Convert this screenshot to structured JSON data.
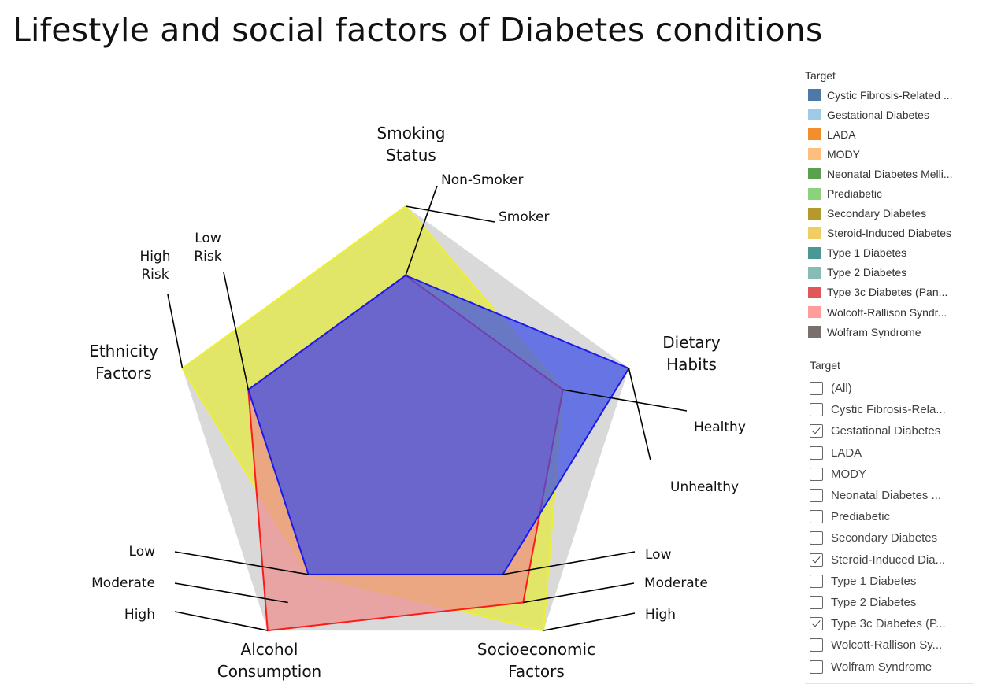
{
  "title": "Lifestyle and social factors of Diabetes conditions",
  "chart_data": {
    "type": "radar",
    "axes": [
      {
        "title_lines": [
          "Smoking",
          "Status"
        ],
        "levels": [
          "Non-Smoker",
          "Smoker"
        ]
      },
      {
        "title_lines": [
          "Dietary",
          "Habits"
        ],
        "levels": [
          "Healthy",
          "Unhealthy"
        ]
      },
      {
        "title_lines": [
          "Socioeconomic",
          "Factors"
        ],
        "levels": [
          "Low",
          "Moderate",
          "High"
        ]
      },
      {
        "title_lines": [
          "Alcohol",
          "Consumption"
        ],
        "levels": [
          "Low",
          "Moderate",
          "High"
        ]
      },
      {
        "title_lines": [
          "Ethnicity",
          "Factors"
        ],
        "levels": [
          "Low Risk",
          "High Risk"
        ]
      }
    ],
    "grid": true,
    "legend_position": "right",
    "series": [
      {
        "name": "Steroid-Induced Diabetes",
        "color": "#e6ee22",
        "stroke": "#ecf030",
        "opacity": 0.62,
        "values": [
          "Smoker",
          "Healthy",
          "High",
          "Low",
          "High Risk"
        ]
      },
      {
        "name": "Type 3c Diabetes (Pan...",
        "color": "#ee8b8b",
        "stroke": "#ff1a1a",
        "opacity": 0.7,
        "values": [
          "Non-Smoker",
          "Healthy",
          "Moderate",
          "High",
          "Low Risk"
        ]
      },
      {
        "name": "Gestational Diabetes",
        "color": "#3a4ee8",
        "stroke": "#1a1aee",
        "opacity": 0.72,
        "values": [
          "Non-Smoker",
          "Unhealthy",
          "Low",
          "Low",
          "Low Risk"
        ]
      }
    ]
  },
  "legend": {
    "title": "Target",
    "items": [
      {
        "label": "Cystic Fibrosis-Related ...",
        "color": "#4e79a7"
      },
      {
        "label": "Gestational Diabetes",
        "color": "#a0cbe8"
      },
      {
        "label": "LADA",
        "color": "#f28e2b"
      },
      {
        "label": "MODY",
        "color": "#ffbe7d"
      },
      {
        "label": "Neonatal Diabetes Melli...",
        "color": "#59a14f"
      },
      {
        "label": "Prediabetic",
        "color": "#8cd17d"
      },
      {
        "label": "Secondary Diabetes",
        "color": "#b6992d"
      },
      {
        "label": "Steroid-Induced Diabetes",
        "color": "#f1ce63"
      },
      {
        "label": "Type 1 Diabetes",
        "color": "#499894"
      },
      {
        "label": "Type 2 Diabetes",
        "color": "#86bcb6"
      },
      {
        "label": "Type 3c Diabetes (Pan...",
        "color": "#e15759"
      },
      {
        "label": "Wolcott-Rallison Syndr...",
        "color": "#ff9d9a"
      },
      {
        "label": "Wolfram Syndrome",
        "color": "#79706e"
      }
    ]
  },
  "filter": {
    "title": "Target",
    "items": [
      {
        "label": "(All)",
        "checked": false
      },
      {
        "label": "Cystic Fibrosis-Rela...",
        "checked": false
      },
      {
        "label": "Gestational Diabetes",
        "checked": true
      },
      {
        "label": "LADA",
        "checked": false
      },
      {
        "label": "MODY",
        "checked": false
      },
      {
        "label": "Neonatal Diabetes ...",
        "checked": false
      },
      {
        "label": "Prediabetic",
        "checked": false
      },
      {
        "label": "Secondary Diabetes",
        "checked": false
      },
      {
        "label": "Steroid-Induced Dia...",
        "checked": true
      },
      {
        "label": "Type 1 Diabetes",
        "checked": false
      },
      {
        "label": "Type 2 Diabetes",
        "checked": false
      },
      {
        "label": "Type 3c Diabetes (P...",
        "checked": true
      },
      {
        "label": "Wolcott-Rallison Sy...",
        "checked": false
      },
      {
        "label": "Wolfram Syndrome",
        "checked": false
      }
    ]
  }
}
